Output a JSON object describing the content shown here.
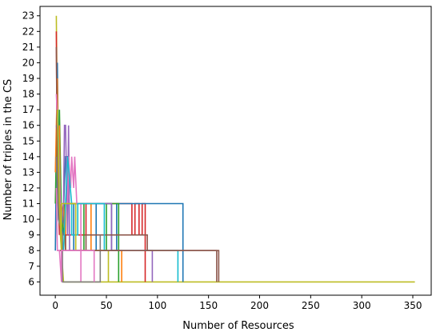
{
  "chart_data": {
    "type": "line",
    "title": "",
    "xlabel": "Number of Resources",
    "ylabel": "Number of triples in the CS",
    "xlim": [
      -15,
      368
    ],
    "ylim": [
      5.15,
      23.6
    ],
    "xticks": [
      0,
      50,
      100,
      150,
      200,
      250,
      300,
      350
    ],
    "yticks": [
      6,
      7,
      8,
      9,
      10,
      11,
      12,
      13,
      14,
      15,
      16,
      17,
      18,
      19,
      20,
      21,
      22,
      23
    ],
    "grid": false,
    "legend": "none",
    "series": [
      {
        "color": "#bcbd22",
        "x": [
          1,
          2,
          3,
          5,
          8,
          352
        ],
        "y": [
          23,
          16,
          11,
          9,
          6,
          6
        ]
      },
      {
        "color": "#d62728",
        "x": [
          1,
          2,
          3,
          4,
          6,
          8,
          30,
          30,
          75,
          75,
          78,
          78,
          82,
          82,
          85,
          85,
          88,
          88
        ],
        "y": [
          22,
          12,
          11,
          9,
          11,
          9,
          9,
          11,
          11,
          9,
          9,
          11,
          11,
          9,
          9,
          11,
          11,
          6
        ]
      },
      {
        "color": "#1f77b4",
        "x": [
          0,
          2,
          3,
          5,
          7,
          10,
          12,
          12,
          18,
          18,
          40,
          40,
          55,
          55,
          60,
          60,
          125,
          125
        ],
        "y": [
          8,
          20,
          14,
          11,
          9,
          14,
          14,
          11,
          11,
          8,
          8,
          11,
          11,
          8,
          8,
          11,
          11,
          6
        ]
      },
      {
        "color": "#2ca02c",
        "x": [
          0,
          2,
          3,
          4,
          6,
          9,
          9,
          28,
          28,
          50,
          50,
          62,
          62
        ],
        "y": [
          11,
          18,
          12,
          17,
          10,
          9,
          11,
          11,
          8,
          8,
          11,
          11,
          6
        ]
      },
      {
        "color": "#ff7f0e",
        "x": [
          0,
          2,
          3,
          4,
          5,
          8,
          10,
          10,
          35,
          35,
          65,
          65
        ],
        "y": [
          13,
          19,
          12,
          16,
          9,
          11,
          8,
          11,
          11,
          8,
          8,
          6
        ]
      },
      {
        "color": "#9467bd",
        "x": [
          1,
          3,
          5,
          8,
          9,
          10,
          12,
          13,
          14,
          20,
          20,
          55,
          55,
          95,
          95
        ],
        "y": [
          16,
          15,
          9,
          11,
          16,
          16,
          9,
          16,
          8,
          8,
          11,
          11,
          8,
          8,
          6
        ]
      },
      {
        "color": "#8c564b",
        "x": [
          1,
          2,
          4,
          6,
          10,
          10,
          30,
          30,
          45,
          90,
          90,
          158,
          158
        ],
        "y": [
          21,
          13,
          10,
          9,
          9,
          8,
          8,
          9,
          9,
          9,
          8,
          8,
          6
        ]
      },
      {
        "color": "#e377c2",
        "x": [
          1,
          3,
          5,
          12,
          13,
          15,
          16,
          18,
          19,
          21,
          22,
          25,
          25
        ],
        "y": [
          18,
          15,
          11,
          11,
          14,
          12,
          14,
          12,
          14,
          11,
          11,
          11,
          6
        ]
      },
      {
        "color": "#17becf",
        "x": [
          2,
          3,
          4,
          6,
          8,
          12,
          16,
          16,
          22,
          22,
          48,
          48,
          120,
          120
        ],
        "y": [
          17,
          15,
          11,
          9,
          8,
          14,
          11,
          9,
          9,
          11,
          11,
          8,
          8,
          6
        ]
      },
      {
        "color": "#7f7f7f",
        "x": [
          1,
          3,
          7,
          7,
          44,
          44
        ],
        "y": [
          14,
          10,
          9,
          6,
          6,
          9
        ]
      },
      {
        "color": "#bcbd22",
        "x": [
          2,
          4,
          6,
          6,
          20,
          20,
          52,
          52
        ],
        "y": [
          17,
          11,
          8,
          11,
          11,
          8,
          8,
          6
        ]
      },
      {
        "color": "#8c564b",
        "x": [
          3,
          5,
          5,
          68,
          68,
          160,
          160
        ],
        "y": [
          8,
          8,
          8,
          8,
          8,
          8,
          6
        ]
      },
      {
        "color": "#e377c2",
        "x": [
          1,
          2,
          4,
          6,
          6,
          38,
          38
        ],
        "y": [
          12,
          8,
          8,
          6,
          8,
          8,
          6
        ]
      }
    ]
  }
}
